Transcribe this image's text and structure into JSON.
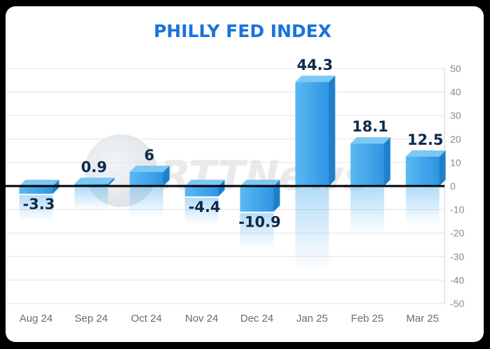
{
  "chart_data": {
    "type": "bar",
    "title": "PHILLY FED INDEX",
    "categories": [
      "Aug 24",
      "Sep 24",
      "Oct 24",
      "Nov 24",
      "Dec 24",
      "Jan 25",
      "Feb 25",
      "Mar 25"
    ],
    "values": [
      -3.3,
      0.9,
      6,
      -4.4,
      -10.9,
      44.3,
      18.1,
      12.5
    ],
    "data_labels": [
      "-3.3",
      "0.9",
      "6",
      "-4.4",
      "-10.9",
      "44.3",
      "18.1",
      "12.5"
    ],
    "ylim": [
      -50,
      50
    ],
    "yticks": [
      50,
      40,
      30,
      20,
      10,
      0,
      -10,
      -20,
      -30,
      -40,
      -50
    ],
    "yaxis_position": "right",
    "grid": true,
    "xlabel": "",
    "ylabel": "",
    "colors": {
      "title": "#1a73d9",
      "bar_top": "#7cc8f5",
      "bar_front": "#3aa3ea",
      "bar_side": "#1f7fc9",
      "zero_line": "#000000",
      "label": "#0f2a4a"
    }
  },
  "watermark": {
    "text": "RTTNews"
  }
}
